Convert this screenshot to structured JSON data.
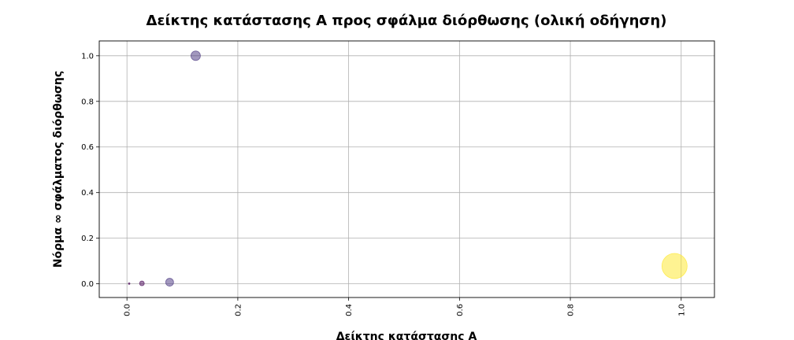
{
  "chart_data": {
    "type": "scatter",
    "title": "Δείκτης κατάστασης A προς σφάλμα διόρθωσης (ολική οδήγηση)",
    "xlabel": "Δείκτης κατάστασης A",
    "ylabel": "Νόρμα ∞ σφάλματος διόρθωσης",
    "xlim": [
      -0.05,
      1.06
    ],
    "ylim": [
      -0.06,
      1.065
    ],
    "xticks": [
      0.0,
      0.2,
      0.4,
      0.6,
      0.8,
      1.0
    ],
    "xtick_labels": [
      "0.0",
      "0.2",
      "0.4",
      "0.6",
      "0.8",
      "1.0"
    ],
    "yticks": [
      0.0,
      0.2,
      0.4,
      0.6,
      0.8,
      1.0
    ],
    "ytick_labels": [
      "0.0",
      "0.2",
      "0.4",
      "0.6",
      "0.8",
      "1.0"
    ],
    "grid": true,
    "colormap": "viridis",
    "points": [
      {
        "x": 0.004,
        "y": 0.001,
        "size": 2,
        "color": "#440154"
      },
      {
        "x": 0.027,
        "y": 0.002,
        "size": 6,
        "color": "#440154"
      },
      {
        "x": 0.077,
        "y": 0.007,
        "size": 10,
        "color": "#46327e"
      },
      {
        "x": 0.124,
        "y": 1.0,
        "size": 12,
        "color": "#46327e"
      },
      {
        "x": 0.988,
        "y": 0.078,
        "size": 32,
        "color": "#fde725"
      }
    ]
  }
}
